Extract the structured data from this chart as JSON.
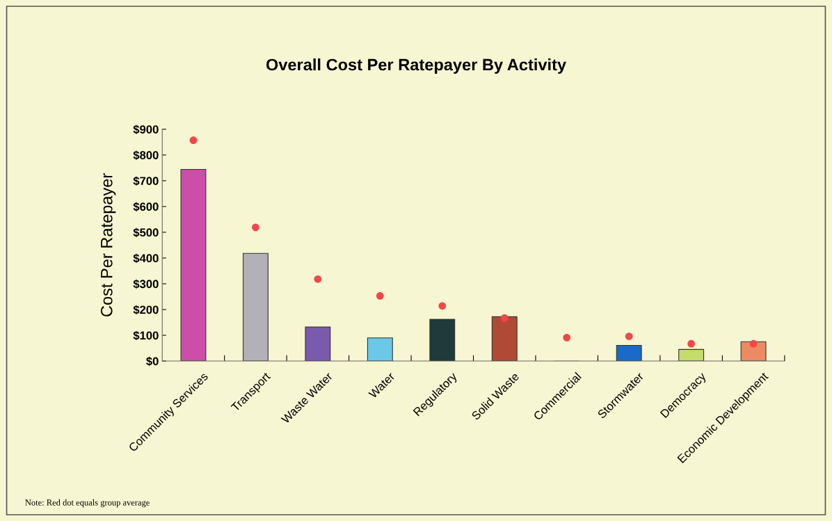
{
  "chart_data": {
    "type": "bar",
    "title": "Overall Cost Per Ratepayer By Activity",
    "ylabel": "Cost Per Ratepayer",
    "categories": [
      "Community Services",
      "Transport",
      "Waste Water",
      "Water",
      "Regulatory",
      "Solid Waste",
      "Commercial",
      "Stormwater",
      "Democracy",
      "Economic Development"
    ],
    "series": [
      {
        "colors": [
          "#cc4ea8",
          "#b3b0b8",
          "#7a5aac",
          "#6cc8e8",
          "#1e3a3a",
          "#b04a36",
          "#888877",
          "#1a6ac8",
          "#c4dc6a",
          "#ec8a62"
        ],
        "values": [
          744,
          418,
          132,
          90,
          162,
          172,
          0,
          61,
          45,
          75
        ]
      },
      {
        "type": "scatter",
        "color": "#f04848",
        "x": [
          "Community Services",
          "Transport",
          "Waste Water",
          "Water",
          "Regulatory",
          "Solid Waste",
          "Commercial",
          "Stormwater",
          "Democracy",
          "Economic Development"
        ],
        "values": [
          857,
          519,
          318,
          253,
          214,
          167,
          91,
          96,
          67,
          67
        ]
      }
    ],
    "ylim": [
      0,
      900
    ],
    "yticks": [
      {
        "value": 0,
        "label": "$0"
      },
      {
        "value": 100,
        "label": "$100"
      },
      {
        "value": 200,
        "label": "$200"
      },
      {
        "value": 300,
        "label": "$300"
      },
      {
        "value": 400,
        "label": "$400"
      },
      {
        "value": 500,
        "label": "$500"
      },
      {
        "value": 600,
        "label": "$600"
      },
      {
        "value": 700,
        "label": "$700"
      },
      {
        "value": 800,
        "label": "$800"
      },
      {
        "value": 900,
        "label": "$900"
      }
    ],
    "grid": false,
    "legend": false,
    "marker": "circle",
    "annotations": [
      "Note: Red dot equals group average"
    ]
  }
}
